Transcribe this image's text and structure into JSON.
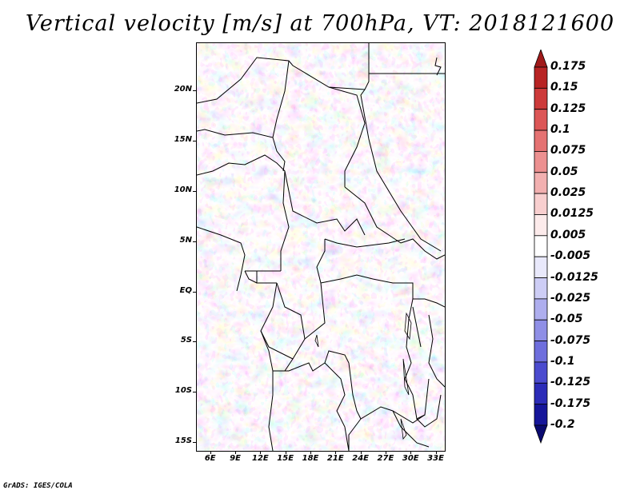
{
  "title": "Vertical velocity [m/s] at 700hPa, VT: 2018121600",
  "footer": "GrADS: IGES/COLA",
  "map": {
    "lat_labels": [
      "20N",
      "15N",
      "10N",
      "5N",
      "EQ",
      "5S",
      "10S",
      "15S"
    ],
    "lat_values": [
      20,
      15,
      10,
      5,
      0,
      -5,
      -10,
      -15
    ],
    "lon_labels": [
      "6E",
      "9E",
      "12E",
      "15E",
      "18E",
      "21E",
      "24E",
      "27E",
      "30E",
      "33E"
    ],
    "lon_values": [
      6,
      9,
      12,
      15,
      18,
      21,
      24,
      27,
      30,
      33
    ],
    "lat_range": [
      -15.8,
      24.8
    ],
    "lon_range": [
      4.3,
      34.0
    ]
  },
  "colorbar": {
    "labels": [
      "0.175",
      "0.15",
      "0.125",
      "0.1",
      "0.075",
      "0.05",
      "0.025",
      "0.0125",
      "0.005",
      "-0.005",
      "-0.0125",
      "-0.025",
      "-0.05",
      "-0.075",
      "-0.1",
      "-0.125",
      "-0.175",
      "-0.2"
    ],
    "colors": [
      "#a01a1a",
      "#b82424",
      "#cd3a3a",
      "#dc5656",
      "#e57272",
      "#ec9090",
      "#f2b0b0",
      "#f8cfcf",
      "#fcebeb",
      "#ffffff",
      "#e9e9fb",
      "#cdcdf5",
      "#aeaeee",
      "#8f8fe6",
      "#6e6edd",
      "#4b4bcf",
      "#2c2cb8",
      "#16169a",
      "#0a0a70"
    ]
  }
}
